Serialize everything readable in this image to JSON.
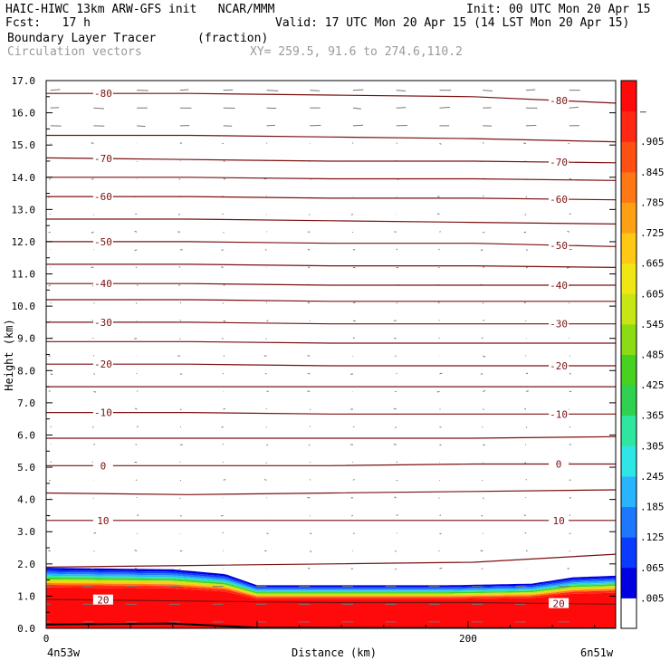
{
  "header": {
    "title": "HAIC-HIWC 13km ARW-GFS init   NCAR/MMM",
    "init": "Init: 00 UTC Mon 20 Apr 15",
    "fcst": "Fcst:   17 h",
    "valid": "Valid: 17 UTC Mon 20 Apr 15 (14 LST Mon 20 Apr 15)",
    "field": "Boundary Layer Tracer",
    "units": "(fraction)",
    "vectors": "Circulation vectors",
    "xy": "XY= 259.5, 91.6 to 274.6,110.2"
  },
  "colors": {
    "contour": "#7a1010",
    "vector": "#777777",
    "colorbar": [
      "#ffffff",
      "#0000e0",
      "#0a3cff",
      "#1e78ff",
      "#28b4ff",
      "#2ee6e6",
      "#2fe6a0",
      "#2fd250",
      "#46d21e",
      "#8cdc14",
      "#c8e614",
      "#f0e614",
      "#ffc814",
      "#ffa014",
      "#ff7814",
      "#ff5014",
      "#ff2814",
      "#ff0a0a"
    ]
  },
  "chart_data": {
    "type": "heatmap",
    "title": "Boundary Layer Tracer",
    "units": "(fraction)",
    "xlabel": "Distance (km)",
    "ylabel": "Height (km)",
    "xlim": [
      0,
      270
    ],
    "ylim": [
      0,
      17
    ],
    "x_ticks": [
      {
        "value": 0,
        "label": "0"
      },
      {
        "value": 200,
        "label": "200"
      }
    ],
    "x_end_labels": {
      "left": "4n53w",
      "right": "6n51w"
    },
    "y_ticks": [
      "0.0",
      "1.0",
      "2.0",
      "3.0",
      "4.0",
      "5.0",
      "6.0",
      "7.0",
      "8.0",
      "9.0",
      "10.0",
      "11.0",
      "12.0",
      "13.0",
      "14.0",
      "15.0",
      "16.0",
      "17.0"
    ],
    "colorbar_labels": [
      ".005",
      ".065",
      ".125",
      ".185",
      ".245",
      ".305",
      ".365",
      ".425",
      ".485",
      ".545",
      ".605",
      ".665",
      ".725",
      ".785",
      ".845",
      ".905",
      "–"
    ],
    "tracer_top_km": [
      {
        "x": 0,
        "y": 1.9
      },
      {
        "x": 60,
        "y": 1.85
      },
      {
        "x": 85,
        "y": 1.7
      },
      {
        "x": 100,
        "y": 1.35
      },
      {
        "x": 140,
        "y": 1.35
      },
      {
        "x": 190,
        "y": 1.35
      },
      {
        "x": 230,
        "y": 1.4
      },
      {
        "x": 250,
        "y": 1.6
      },
      {
        "x": 270,
        "y": 1.65
      }
    ],
    "contours": [
      {
        "label": "-80",
        "y": [
          16.6,
          16.6,
          16.55,
          16.5,
          16.3
        ]
      },
      {
        "label": "",
        "y": [
          15.3,
          15.3,
          15.25,
          15.2,
          15.1
        ]
      },
      {
        "label": "-70",
        "y": [
          14.6,
          14.55,
          14.5,
          14.5,
          14.45
        ]
      },
      {
        "label": "",
        "y": [
          14.0,
          14.0,
          13.95,
          13.95,
          13.9
        ]
      },
      {
        "label": "-60",
        "y": [
          13.4,
          13.4,
          13.35,
          13.35,
          13.3
        ]
      },
      {
        "label": "",
        "y": [
          12.7,
          12.7,
          12.65,
          12.6,
          12.55
        ]
      },
      {
        "label": "-50",
        "y": [
          12.0,
          12.0,
          11.95,
          11.95,
          11.85
        ]
      },
      {
        "label": "",
        "y": [
          11.3,
          11.3,
          11.25,
          11.25,
          11.2
        ]
      },
      {
        "label": "-40",
        "y": [
          10.7,
          10.7,
          10.65,
          10.65,
          10.65
        ]
      },
      {
        "label": "",
        "y": [
          10.2,
          10.2,
          10.15,
          10.15,
          10.15
        ]
      },
      {
        "label": "-30",
        "y": [
          9.5,
          9.5,
          9.45,
          9.45,
          9.45
        ]
      },
      {
        "label": "",
        "y": [
          8.9,
          8.9,
          8.85,
          8.85,
          8.85
        ]
      },
      {
        "label": "-20",
        "y": [
          8.2,
          8.2,
          8.15,
          8.15,
          8.15
        ]
      },
      {
        "label": "",
        "y": [
          7.5,
          7.5,
          7.5,
          7.5,
          7.5
        ]
      },
      {
        "label": "-10",
        "y": [
          6.7,
          6.7,
          6.65,
          6.65,
          6.65
        ]
      },
      {
        "label": "",
        "y": [
          5.9,
          5.9,
          5.9,
          5.9,
          5.95
        ]
      },
      {
        "label": "0",
        "y": [
          5.05,
          5.05,
          5.05,
          5.1,
          5.1
        ]
      },
      {
        "label": "",
        "y": [
          4.2,
          4.15,
          4.2,
          4.25,
          4.3
        ]
      },
      {
        "label": "10",
        "y": [
          3.35,
          3.35,
          3.35,
          3.35,
          3.35
        ]
      },
      {
        "label": "",
        "y": [
          1.9,
          1.95,
          2.0,
          2.05,
          2.3
        ]
      },
      {
        "label": "20",
        "y": [
          0.9,
          0.85,
          0.8,
          0.8,
          0.75
        ]
      }
    ]
  }
}
